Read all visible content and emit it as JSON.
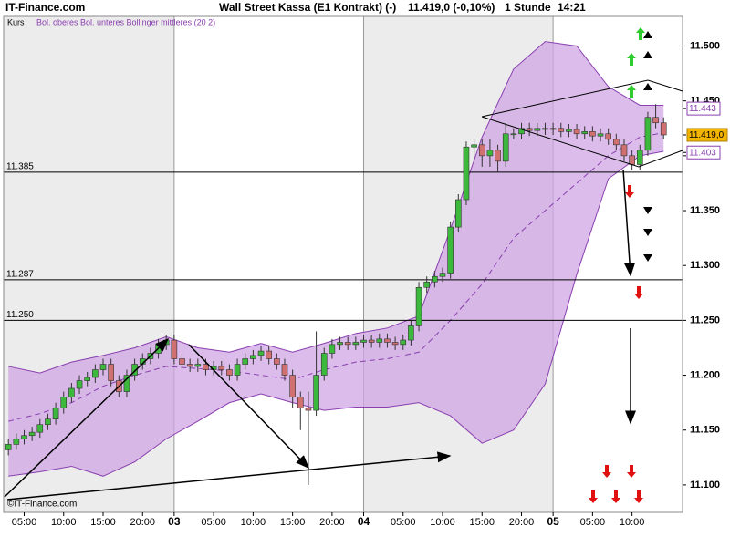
{
  "header": {
    "site": "IT-Finance.com",
    "instrument": "Wall Street Kassa (E1 Kontrakt) (-)",
    "quote": "11.419,0 (-0,10%)",
    "interval": "1 Stunde",
    "time": "14:21"
  },
  "chart_data": {
    "type": "candlestick",
    "legend": {
      "price": "Kurs",
      "bollinger": "Bol. oberes Bol. unteres Bollinger mittleres (20 2)"
    },
    "watermark": "©IT-Finance.com",
    "xlim": [
      -0.6,
      85.4
    ],
    "xticks": [
      {
        "value": 2,
        "label": "05:00"
      },
      {
        "value": 7,
        "label": "10:00"
      },
      {
        "value": 12,
        "label": "15:00"
      },
      {
        "value": 17,
        "label": "20:00"
      },
      {
        "value": 21,
        "label": "03"
      },
      {
        "value": 26,
        "label": "05:00"
      },
      {
        "value": 31,
        "label": "10:00"
      },
      {
        "value": 36,
        "label": "15:00"
      },
      {
        "value": 41,
        "label": "20:00"
      },
      {
        "value": 45,
        "label": "04"
      },
      {
        "value": 50,
        "label": "05:00"
      },
      {
        "value": 55,
        "label": "10:00"
      },
      {
        "value": 60,
        "label": "15:00"
      },
      {
        "value": 65,
        "label": "20:00"
      },
      {
        "value": 69,
        "label": "05"
      },
      {
        "value": 74,
        "label": "05:00"
      },
      {
        "value": 79,
        "label": "10:00"
      }
    ],
    "ylim": [
      11.075,
      11.527
    ],
    "yticks": [
      {
        "value": 11.1,
        "label": "11.100"
      },
      {
        "value": 11.15,
        "label": "11.150"
      },
      {
        "value": 11.2,
        "label": "11.200"
      },
      {
        "value": 11.25,
        "label": "11.250"
      },
      {
        "value": 11.3,
        "label": "11.300"
      },
      {
        "value": 11.35,
        "label": "11.350"
      },
      {
        "value": 11.4,
        "label": "11.400"
      },
      {
        "value": 11.45,
        "label": "11.450"
      },
      {
        "value": 11.5,
        "label": "11.500"
      }
    ],
    "up_color": "#3cb83c",
    "down_color": "#d07070",
    "open": [
      11.132,
      11.137,
      11.142,
      11.145,
      11.148,
      11.155,
      11.16,
      11.17,
      11.18,
      11.188,
      11.195,
      11.198,
      11.205,
      11.21,
      11.195,
      11.185,
      11.2,
      11.21,
      11.215,
      11.22,
      11.228,
      11.232,
      11.215,
      11.21,
      11.208,
      11.21,
      11.205,
      11.208,
      11.205,
      11.2,
      11.21,
      11.215,
      11.218,
      11.222,
      11.215,
      11.21,
      11.2,
      11.18,
      11.17,
      11.168,
      11.2,
      11.22,
      11.228,
      11.23,
      11.228,
      11.23,
      11.232,
      11.23,
      11.233,
      11.23,
      11.228,
      11.232,
      11.245,
      11.28,
      11.285,
      11.29,
      11.293,
      11.335,
      11.36,
      11.408,
      11.41,
      11.4,
      11.405,
      11.395,
      11.42,
      11.42,
      11.425,
      11.423,
      11.425,
      11.424,
      11.425,
      11.422,
      11.424,
      11.42,
      11.422,
      11.418,
      11.42,
      11.415,
      11.41,
      11.4,
      11.392,
      11.405,
      11.435,
      11.43
    ],
    "high": [
      11.142,
      11.147,
      11.15,
      11.153,
      11.16,
      11.165,
      11.175,
      11.185,
      11.193,
      11.2,
      11.203,
      11.21,
      11.215,
      11.215,
      11.2,
      11.205,
      11.215,
      11.22,
      11.225,
      11.233,
      11.237,
      11.237,
      11.22,
      11.215,
      11.215,
      11.215,
      11.213,
      11.213,
      11.21,
      11.215,
      11.22,
      11.223,
      11.227,
      11.227,
      11.22,
      11.215,
      11.205,
      11.185,
      11.185,
      11.24,
      11.225,
      11.233,
      11.235,
      11.235,
      11.235,
      11.237,
      11.237,
      11.238,
      11.238,
      11.235,
      11.237,
      11.25,
      11.285,
      11.29,
      11.295,
      11.298,
      11.34,
      11.365,
      11.413,
      11.415,
      11.415,
      11.415,
      11.41,
      11.43,
      11.425,
      11.43,
      11.43,
      11.43,
      11.43,
      11.43,
      11.43,
      11.429,
      11.429,
      11.427,
      11.427,
      11.425,
      11.425,
      11.42,
      11.415,
      11.405,
      11.41,
      11.44,
      11.447,
      11.435
    ],
    "low": [
      11.127,
      11.132,
      11.137,
      11.14,
      11.143,
      11.15,
      11.155,
      11.165,
      11.175,
      11.183,
      11.19,
      11.193,
      11.2,
      11.19,
      11.18,
      11.18,
      11.195,
      11.205,
      11.21,
      11.215,
      11.223,
      11.21,
      11.205,
      11.203,
      11.203,
      11.2,
      11.2,
      11.2,
      11.195,
      11.195,
      11.205,
      11.21,
      11.213,
      11.21,
      11.205,
      11.195,
      11.17,
      11.15,
      11.1,
      11.163,
      11.195,
      11.215,
      11.223,
      11.223,
      11.223,
      11.225,
      11.225,
      11.225,
      11.225,
      11.223,
      11.223,
      11.227,
      11.24,
      11.275,
      11.28,
      11.285,
      11.288,
      11.33,
      11.355,
      11.395,
      11.39,
      11.39,
      11.385,
      11.39,
      11.415,
      11.415,
      11.418,
      11.418,
      11.419,
      11.419,
      11.417,
      11.417,
      11.415,
      11.415,
      11.413,
      11.413,
      11.41,
      11.405,
      11.395,
      11.387,
      11.387,
      11.4,
      11.425,
      11.415
    ],
    "close": [
      11.137,
      11.142,
      11.145,
      11.148,
      11.155,
      11.16,
      11.17,
      11.18,
      11.188,
      11.195,
      11.198,
      11.205,
      11.21,
      11.195,
      11.185,
      11.2,
      11.21,
      11.215,
      11.22,
      11.228,
      11.232,
      11.215,
      11.21,
      11.208,
      11.21,
      11.205,
      11.208,
      11.205,
      11.2,
      11.21,
      11.215,
      11.218,
      11.222,
      11.215,
      11.21,
      11.2,
      11.18,
      11.17,
      11.168,
      11.2,
      11.22,
      11.228,
      11.23,
      11.228,
      11.23,
      11.232,
      11.23,
      11.233,
      11.23,
      11.228,
      11.232,
      11.245,
      11.28,
      11.285,
      11.29,
      11.293,
      11.335,
      11.36,
      11.408,
      11.41,
      11.4,
      11.405,
      11.395,
      11.42,
      11.42,
      11.425,
      11.423,
      11.425,
      11.424,
      11.425,
      11.422,
      11.424,
      11.42,
      11.422,
      11.418,
      11.42,
      11.415,
      11.41,
      11.4,
      11.392,
      11.405,
      11.435,
      11.43,
      11.419
    ],
    "bands": {
      "color": "#8a3fb0",
      "fill": "#cfa6e3",
      "x": [
        0,
        4,
        8,
        12,
        16,
        20,
        24,
        28,
        32,
        36,
        40,
        44,
        48,
        52,
        56,
        60,
        64,
        68,
        72,
        76,
        80,
        83
      ],
      "upper": [
        11.208,
        11.202,
        11.212,
        11.218,
        11.225,
        11.235,
        11.225,
        11.221,
        11.229,
        11.221,
        11.229,
        11.238,
        11.243,
        11.254,
        11.333,
        11.417,
        11.479,
        11.504,
        11.5,
        11.463,
        11.446,
        11.446
      ],
      "lower": [
        11.108,
        11.112,
        11.117,
        11.108,
        11.121,
        11.142,
        11.158,
        11.175,
        11.183,
        11.175,
        11.168,
        11.171,
        11.171,
        11.175,
        11.163,
        11.138,
        11.15,
        11.192,
        11.292,
        11.379,
        11.4,
        11.404
      ],
      "middle": [
        11.158,
        11.165,
        11.175,
        11.19,
        11.2,
        11.208,
        11.206,
        11.204,
        11.2,
        11.196,
        11.205,
        11.212,
        11.215,
        11.221,
        11.25,
        11.283,
        11.325,
        11.35,
        11.375,
        11.4,
        11.417,
        11.421
      ]
    },
    "levels": [
      {
        "value": 11.385,
        "label": "11.385"
      },
      {
        "value": 11.287,
        "label": "11.287"
      },
      {
        "value": 11.25,
        "label": "11.250"
      }
    ],
    "price_labels": [
      {
        "value": 11.443,
        "label": "11.443"
      },
      {
        "value": 11.419,
        "label": "11.419,0"
      },
      {
        "value": 11.403,
        "label": "11.403"
      }
    ]
  }
}
